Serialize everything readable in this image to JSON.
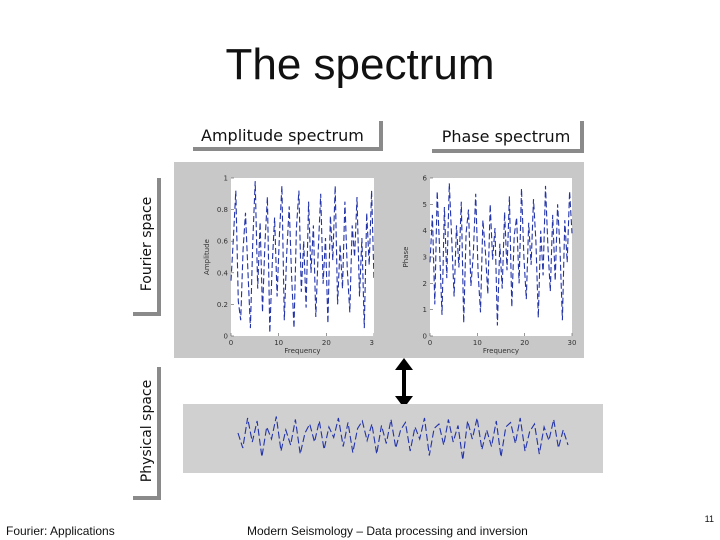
{
  "slide": {
    "title": "The spectrum",
    "page_number": "11"
  },
  "labels": {
    "amplitude_spectrum": "Amplitude spectrum",
    "phase_spectrum": "Phase spectrum",
    "fourier_space": "Fourier space",
    "physical_space": "Physical space"
  },
  "footer": {
    "left": "Fourier: Applications",
    "center": "Modern Seismology – Data processing and inversion"
  },
  "colors": {
    "line": "#2233aa",
    "panel": "#c8c8c8",
    "label_shadow": "#8a8a8a"
  },
  "chart_data": [
    {
      "type": "line",
      "title": "",
      "xlabel": "Frequency",
      "ylabel": "Amplitude",
      "xlim": [
        0,
        30
      ],
      "ylim": [
        0,
        1
      ],
      "x_ticks": [
        "0",
        "10",
        "20",
        "30"
      ],
      "y_ticks": [
        "0",
        "0.2",
        "0.4",
        "0.6",
        "0.8",
        "1"
      ],
      "grid": false,
      "series": [
        {
          "values": [
            0.35,
            0.62,
            0.92,
            0.22,
            0.1,
            0.55,
            0.78,
            0.4,
            0.05,
            0.6,
            0.98,
            0.3,
            0.72,
            0.15,
            0.58,
            0.88,
            0.02,
            0.45,
            0.75,
            0.25,
            0.65,
            0.95,
            0.1,
            0.52,
            0.82,
            0.38,
            0.05,
            0.68,
            0.92,
            0.28,
            0.6,
            0.18,
            0.85,
            0.4,
            0.7,
            0.12,
            0.55,
            0.9,
            0.33,
            0.62,
            0.08,
            0.76,
            0.48,
            0.95,
            0.2,
            0.58,
            0.3,
            0.85,
            0.42,
            0.15,
            0.7,
            0.5,
            0.88,
            0.25,
            0.62,
            0.05,
            0.78,
            0.45,
            0.92,
            0.35
          ]
        }
      ]
    },
    {
      "type": "line",
      "title": "",
      "xlabel": "Frequency",
      "ylabel": "Phase",
      "xlim": [
        0,
        30
      ],
      "ylim": [
        0,
        6
      ],
      "x_ticks": [
        "0",
        "10",
        "20",
        "30"
      ],
      "y_ticks": [
        "0",
        "1",
        "2",
        "3",
        "4",
        "5",
        "6"
      ],
      "grid": false,
      "series": [
        {
          "values": [
            2.8,
            4.6,
            1.2,
            5.5,
            3.3,
            0.8,
            4.9,
            2.2,
            5.8,
            3.7,
            1.5,
            4.2,
            2.6,
            5.1,
            0.5,
            3.9,
            4.8,
            1.9,
            3.1,
            5.4,
            2.4,
            0.9,
            4.4,
            3.2,
            1.6,
            5.0,
            2.9,
            4.1,
            0.4,
            3.5,
            1.8,
            4.7,
            2.5,
            5.3,
            1.1,
            3.8,
            4.5,
            2.0,
            5.6,
            3.0,
            1.4,
            4.3,
            2.7,
            5.2,
            3.6,
            0.7,
            4.0,
            2.3,
            5.7,
            3.4,
            1.7,
            4.6,
            2.1,
            5.0,
            3.3,
            0.6,
            4.4,
            2.8,
            5.5,
            3.9
          ]
        }
      ]
    },
    {
      "type": "line",
      "title": "",
      "xlabel": "",
      "ylabel": "",
      "grid": false,
      "series": [
        {
          "values": [
            0.1,
            -0.4,
            0.6,
            -0.2,
            0.5,
            -0.7,
            0.3,
            -0.1,
            0.65,
            -0.5,
            0.2,
            -0.3,
            0.55,
            -0.6,
            0.1,
            0.4,
            -0.2,
            0.5,
            -0.45,
            0.3,
            -0.05,
            0.6,
            -0.35,
            0.45,
            -0.55,
            0.25,
            0.5,
            -0.15,
            0.4,
            -0.6,
            0.35,
            -0.25,
            0.55,
            -0.4,
            0.2,
            0.45,
            -0.5,
            0.3,
            -0.1,
            0.6,
            -0.65,
            0.25,
            0.4,
            -0.3,
            0.55,
            -0.2,
            0.35,
            -0.8,
            0.5,
            -0.1,
            0.6,
            -0.45,
            0.2,
            -0.35,
            0.5,
            -0.7,
            0.3,
            0.45,
            -0.25,
            0.6,
            -0.5,
            0.15,
            0.4,
            -0.6,
            0.3,
            -0.15,
            0.55,
            -0.4,
            0.2,
            -0.3
          ]
        }
      ]
    }
  ]
}
